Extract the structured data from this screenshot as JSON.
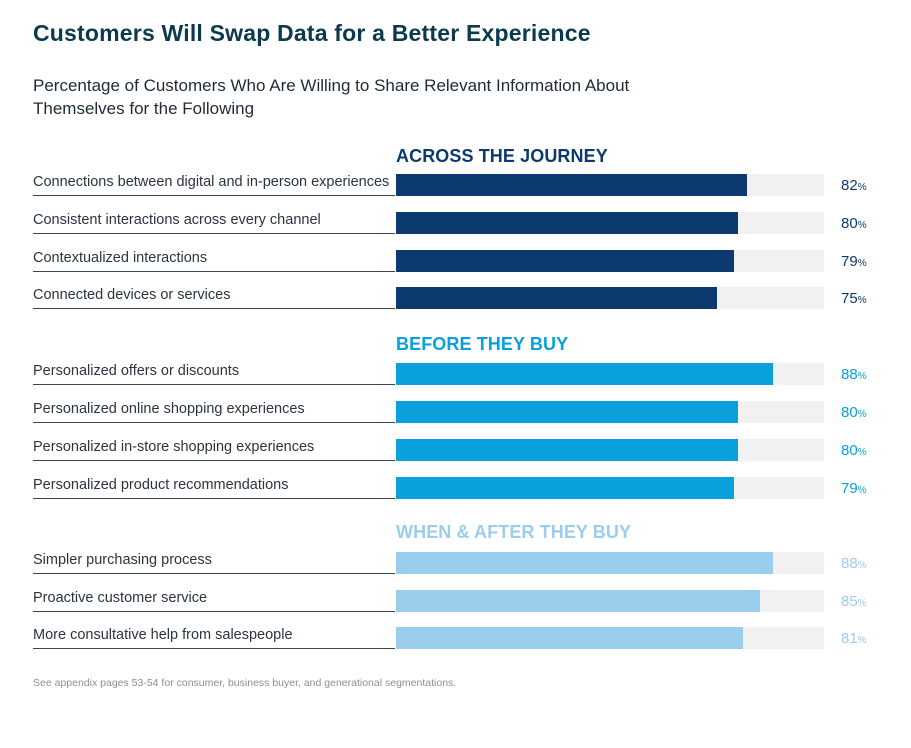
{
  "title": "Customers Will Swap Data for a Better Experience",
  "subtitle": "Percentage of Customers Who Are Willing to Share Relevant Information About Themselves for the Following",
  "footnote": "See appendix pages 53-54 for consumer, business buyer, and generational segmentations.",
  "colors": {
    "across": "#0c3a6f",
    "before": "#0aa0db",
    "after": "#9bcdec",
    "track": "#f1f0f3"
  },
  "chart_data": {
    "type": "bar",
    "orientation": "horizontal",
    "title": "Customers Will Swap Data for a Better Experience",
    "subtitle": "Percentage of Customers Who Are Willing to Share Relevant Information About Themselves for the Following",
    "xlim": [
      0,
      100
    ],
    "unit": "%",
    "groups": [
      {
        "name": "ACROSS THE JOURNEY",
        "items": [
          {
            "label": "Connections between digital and in-person experiences",
            "value": 82
          },
          {
            "label": "Consistent interactions across every channel",
            "value": 80
          },
          {
            "label": "Contextualized interactions",
            "value": 79
          },
          {
            "label": "Connected devices or services",
            "value": 75
          }
        ]
      },
      {
        "name": "BEFORE THEY BUY",
        "items": [
          {
            "label": "Personalized offers or discounts",
            "value": 88
          },
          {
            "label": "Personalized online shopping experiences",
            "value": 80
          },
          {
            "label": "Personalized in-store shopping experiences",
            "value": 80
          },
          {
            "label": "Personalized product recommendations",
            "value": 79
          }
        ]
      },
      {
        "name": "WHEN & AFTER THEY BUY",
        "items": [
          {
            "label": "Simpler purchasing process",
            "value": 88
          },
          {
            "label": "Proactive customer service",
            "value": 85
          },
          {
            "label": "More consultative help from salespeople",
            "value": 81
          }
        ]
      }
    ]
  }
}
